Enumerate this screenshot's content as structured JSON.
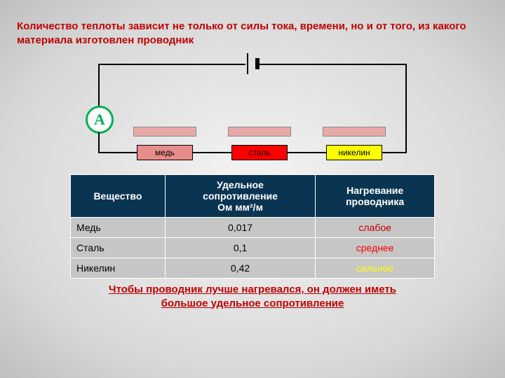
{
  "title": "Количество теплоты зависит не только от силы тока, времени, но и от того, из какого материала изготовлен проводник",
  "circuit": {
    "ammeter_label": "А",
    "resistors": [
      {
        "label": "медь",
        "fill": "#e78b8b",
        "text_color": "#000000"
      },
      {
        "label": "сталь",
        "fill": "#ff0000",
        "text_color": "#000000"
      },
      {
        "label": "никелин",
        "fill": "#ffff00",
        "text_color": "#000000"
      }
    ],
    "heatbar_color": "#e9a9a9",
    "wire_color": "#000000"
  },
  "table": {
    "headers": {
      "col1": "Вещество",
      "col2_line1": "Удельное",
      "col2_line2": "сопротивление",
      "col2_line3": "Ом мм²/м",
      "col3_line1": "Нагревание",
      "col3_line2": "проводника"
    },
    "header_bg": "#0a3552",
    "cell_bg": "#c6c6c6",
    "rows": [
      {
        "substance": "Медь",
        "resistivity": "0,017",
        "heating": "слабое",
        "heating_color": "#c00000"
      },
      {
        "substance": "Сталь",
        "resistivity": "0,1",
        "heating": "среднее",
        "heating_color": "#ff0000"
      },
      {
        "substance": "Никелин",
        "resistivity": "0,42",
        "heating": "сильное",
        "heating_color": "#ffff00"
      }
    ]
  },
  "conclusion": {
    "line1": "Чтобы проводник лучше нагревался,  он  должен иметь",
    "line2": "большое  удельное  сопротивление",
    "color": "#c00000"
  }
}
